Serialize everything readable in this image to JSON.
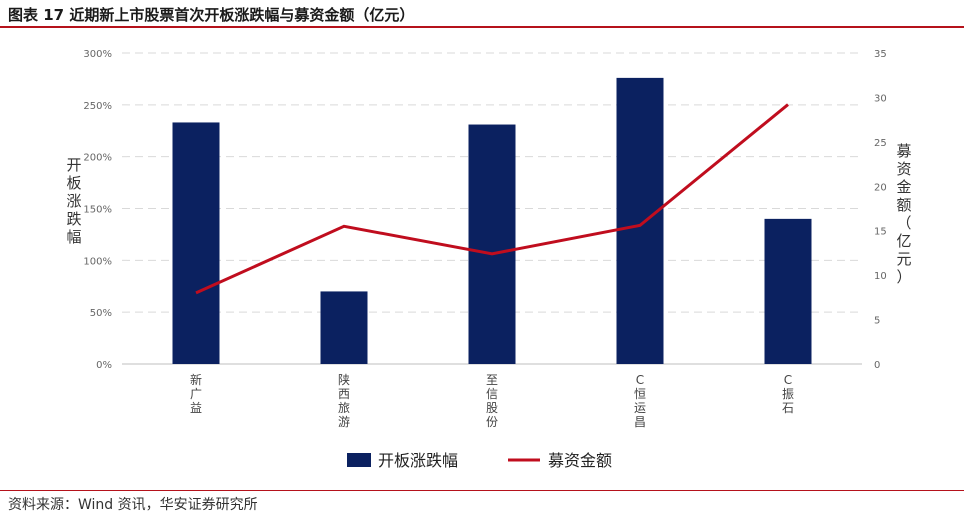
{
  "header": {
    "title": "图表 17 近期新上市股票首次开板涨跌幅与募资金额（亿元）"
  },
  "footer": {
    "source": "资料来源：Wind 资讯，华安证券研究所"
  },
  "chart_data": {
    "type": "bar",
    "categories": [
      "新广益",
      "陕西旅游",
      "至信股份",
      "C恒运昌",
      "C振石"
    ],
    "series": [
      {
        "name": "开板涨跌幅",
        "kind": "bar",
        "axis": "left",
        "values": [
          233,
          70,
          231,
          276,
          140
        ],
        "color": "#0b2160"
      },
      {
        "name": "募资金额",
        "kind": "line",
        "axis": "right",
        "values": [
          8.0,
          15.5,
          12.4,
          15.6,
          29.2
        ],
        "color": "#c00d1e"
      }
    ],
    "ylabel": "开板涨跌幅",
    "ylim": [
      0,
      300
    ],
    "yticks": [
      "0%",
      "50%",
      "100%",
      "150%",
      "200%",
      "250%",
      "300%"
    ],
    "y2label": "募资金额（亿元）",
    "y2lim": [
      0,
      35
    ],
    "y2ticks": [
      "0",
      "5",
      "10",
      "15",
      "20",
      "25",
      "30",
      "35"
    ],
    "grid": true,
    "legend_position": "bottom"
  }
}
